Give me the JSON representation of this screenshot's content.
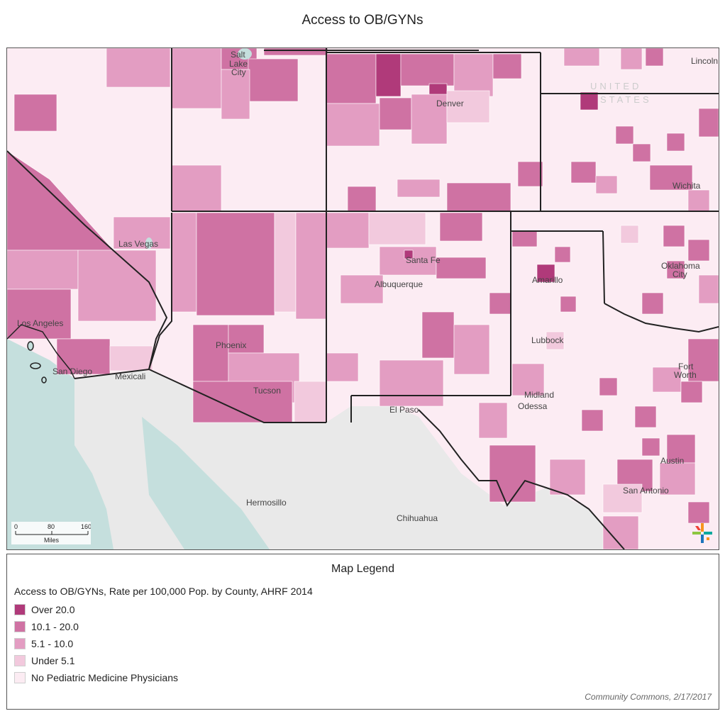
{
  "title": "Access to OB/GYNs",
  "map": {
    "place_labels": [
      {
        "key": "salt_lake_city_1",
        "text": "Salt"
      },
      {
        "key": "salt_lake_city_2",
        "text": "Lake"
      },
      {
        "key": "salt_lake_city_3",
        "text": "City"
      },
      {
        "key": "denver",
        "text": "Denver"
      },
      {
        "key": "lincoln",
        "text": "Lincoln"
      },
      {
        "key": "wichita",
        "text": "Wichita"
      },
      {
        "key": "las_vegas",
        "text": "Las Vegas"
      },
      {
        "key": "santa_fe",
        "text": "Santa Fe"
      },
      {
        "key": "albuquerque",
        "text": "Albuquerque"
      },
      {
        "key": "amarillo",
        "text": "Amarillo"
      },
      {
        "key": "oklahoma_city_1",
        "text": "Oklahoma"
      },
      {
        "key": "oklahoma_city_2",
        "text": "City"
      },
      {
        "key": "los_angeles",
        "text": "Los Angeles"
      },
      {
        "key": "phoenix",
        "text": "Phoenix"
      },
      {
        "key": "lubbock",
        "text": "Lubbock"
      },
      {
        "key": "fort_worth_1",
        "text": "Fort"
      },
      {
        "key": "fort_worth_2",
        "text": "Worth"
      },
      {
        "key": "san_diego",
        "text": "San Diego"
      },
      {
        "key": "mexicali",
        "text": "Mexicali"
      },
      {
        "key": "tucson",
        "text": "Tucson"
      },
      {
        "key": "midland",
        "text": "Midland"
      },
      {
        "key": "odessa",
        "text": "Odessa"
      },
      {
        "key": "el_paso",
        "text": "El Paso"
      },
      {
        "key": "austin",
        "text": "Austin"
      },
      {
        "key": "san_antonio",
        "text": "San Antonio"
      },
      {
        "key": "hermosillo",
        "text": "Hermosillo"
      },
      {
        "key": "chihuahua",
        "text": "Chihuahua"
      }
    ],
    "country_label_1": "UNITED",
    "country_label_2": "STATES",
    "scale": {
      "ticks": [
        "0",
        "80",
        "160"
      ],
      "unit": "Miles"
    },
    "logo_icon": "community-commons-logo-icon"
  },
  "legend": {
    "title": "Map Legend",
    "subtitle": "Access to OB/GYNs, Rate per 100,000 Pop. by County, AHRF 2014",
    "items": [
      {
        "label": "Over 20.0",
        "color": "#b03a7a"
      },
      {
        "label": "10.1 - 20.0",
        "color": "#cf72a3"
      },
      {
        "label": "5.1 - 10.0",
        "color": "#e39dc2"
      },
      {
        "label": "Under 5.1",
        "color": "#f2c9dd"
      },
      {
        "label": "No Pediatric Medicine Physicians",
        "color": "#fcecf3"
      }
    ]
  },
  "credit": "Community Commons, 2/17/2017",
  "colors": {
    "land_foreign": "#e9e9e9",
    "water": "#c5dfdd",
    "border": "#222222"
  }
}
